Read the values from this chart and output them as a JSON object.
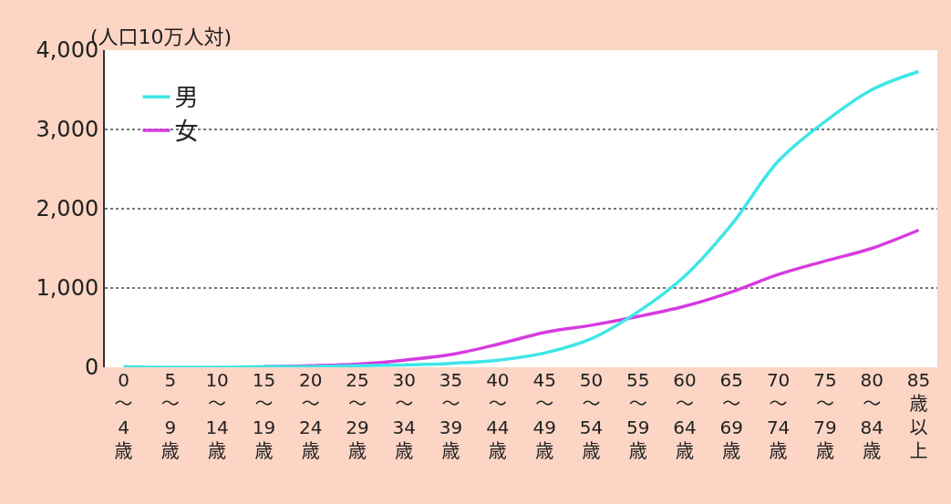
{
  "chart_data": {
    "type": "line",
    "ylabel": "(人口10万人対)",
    "categories": [
      "0～4歳",
      "5～9歳",
      "10～14歳",
      "15～19歳",
      "20～24歳",
      "25～29歳",
      "30～34歳",
      "35～39歳",
      "40～44歳",
      "45～49歳",
      "50～54歳",
      "55～59歳",
      "60～64歳",
      "65～69歳",
      "70～74歳",
      "75～79歳",
      "80～84歳",
      "85歳以上"
    ],
    "series": [
      {
        "name": "男",
        "color": "#3ee6e6",
        "values": [
          10,
          0,
          0,
          10,
          10,
          20,
          30,
          50,
          90,
          180,
          360,
          700,
          1150,
          1800,
          2600,
          3100,
          3500,
          3730
        ]
      },
      {
        "name": "女",
        "color": "#d63be0",
        "values": [
          null,
          null,
          null,
          10,
          20,
          40,
          90,
          160,
          290,
          440,
          530,
          640,
          770,
          950,
          1170,
          1340,
          1500,
          1730
        ]
      }
    ],
    "ylim": [
      0,
      4000
    ],
    "yticks": [
      {
        "value": 0,
        "label": "0"
      },
      {
        "value": 1000,
        "label": "1,000"
      },
      {
        "value": 2000,
        "label": "2,000"
      },
      {
        "value": 3000,
        "label": "3,000"
      },
      {
        "value": 4000,
        "label": "4,000"
      }
    ],
    "grid": "y",
    "legend": "top left",
    "marker": "none",
    "line_style": "solid"
  }
}
